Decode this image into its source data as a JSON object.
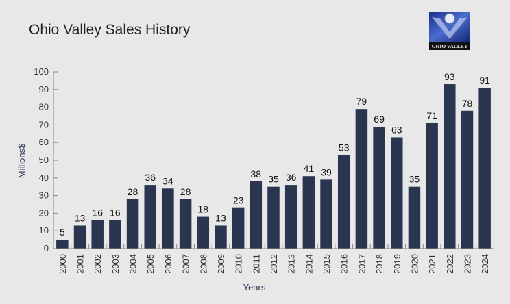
{
  "logo": {
    "text": "OHIO VALLEY"
  },
  "colors": {
    "bar": "#2a3650",
    "background": "#e8e8e8"
  },
  "chart_data": {
    "type": "bar",
    "title": "Ohio Valley Sales History",
    "xlabel": "Years",
    "ylabel": "Millions$",
    "ylim": [
      0,
      100
    ],
    "yticks": [
      0,
      10,
      20,
      30,
      40,
      50,
      60,
      70,
      80,
      90,
      100
    ],
    "grid": false,
    "categories": [
      "2000",
      "2001",
      "2002",
      "2003",
      "2004",
      "2005",
      "2006",
      "2007",
      "2008",
      "2009",
      "2010",
      "2011",
      "2012",
      "2013",
      "2014",
      "2015",
      "2016",
      "2017",
      "2018",
      "2019",
      "2020",
      "2021",
      "2022",
      "2023",
      "2024"
    ],
    "values": [
      5,
      13,
      16,
      16,
      28,
      36,
      34,
      28,
      18,
      13,
      23,
      38,
      35,
      36,
      41,
      39,
      53,
      79,
      69,
      63,
      35,
      71,
      93,
      78,
      91
    ]
  }
}
